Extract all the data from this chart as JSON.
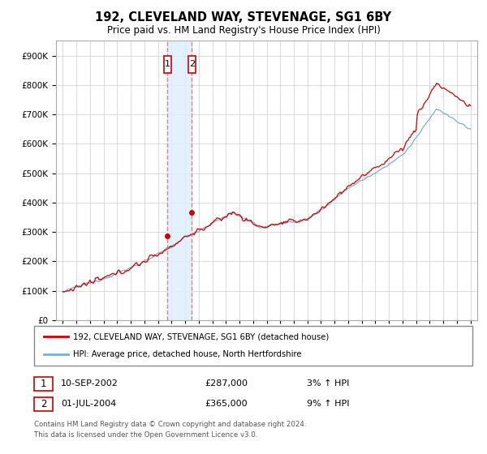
{
  "title": "192, CLEVELAND WAY, STEVENAGE, SG1 6BY",
  "subtitle": "Price paid vs. HM Land Registry's House Price Index (HPI)",
  "legend_line1": "192, CLEVELAND WAY, STEVENAGE, SG1 6BY (detached house)",
  "legend_line2": "HPI: Average price, detached house, North Hertfordshire",
  "transactions": [
    {
      "label": "1",
      "date": "10-SEP-2002",
      "price": "£287,000",
      "pct": "3%",
      "direction": "↑",
      "year": 2002.69
    },
    {
      "label": "2",
      "date": "01-JUL-2004",
      "price": "£365,000",
      "pct": "9%",
      "direction": "↑",
      "year": 2004.5
    }
  ],
  "footer1": "Contains HM Land Registry data © Crown copyright and database right 2024.",
  "footer2": "This data is licensed under the Open Government Licence v3.0.",
  "red_color": "#cc0000",
  "blue_color": "#7aadd4",
  "transaction_box_color": "#ddeeff",
  "dashed_line_color": "#dd6666",
  "ylim": [
    0,
    950000
  ],
  "xlim": [
    1994.5,
    2025.5
  ],
  "yticks": [
    0,
    100000,
    200000,
    300000,
    400000,
    500000,
    600000,
    700000,
    800000,
    900000
  ]
}
